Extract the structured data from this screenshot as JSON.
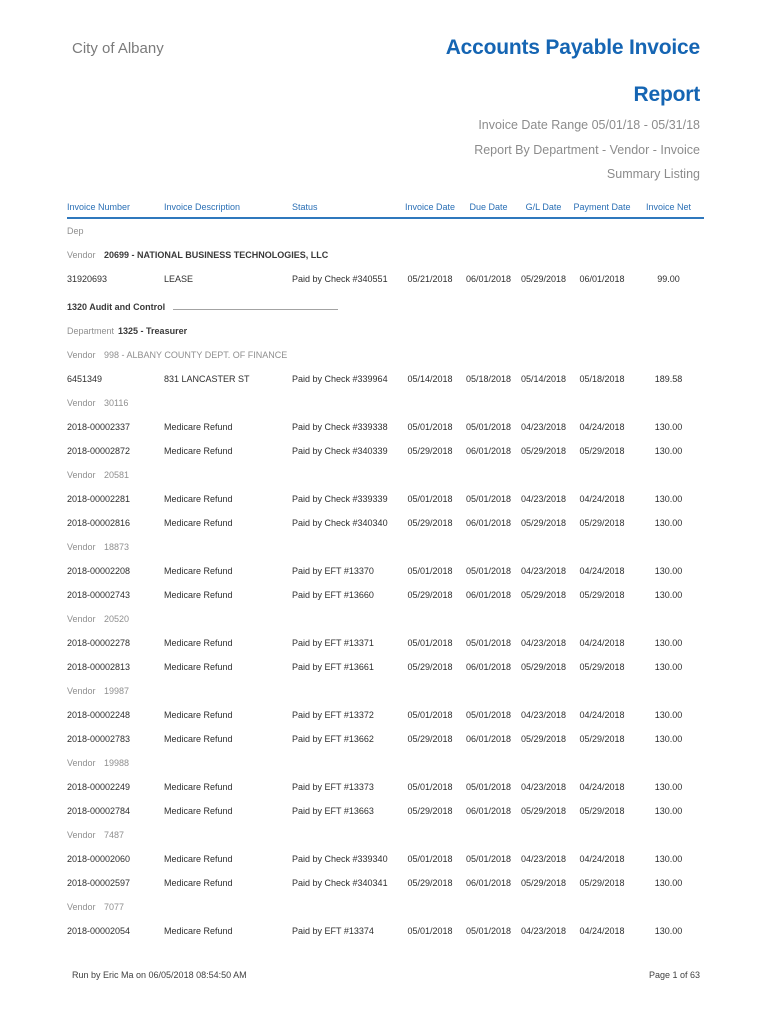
{
  "colors": {
    "title_blue": "#1565b3",
    "header_blue": "#2a6fb5",
    "rule_blue": "#2f78bd",
    "gray_text": "#8f8f8f",
    "dark_text": "#2f2f2f"
  },
  "header": {
    "org_name": "City of Albany",
    "title_line1": "Accounts Payable Invoice",
    "title_line2": "Report",
    "date_range": "Invoice Date Range 05/01/18 - 05/31/18",
    "report_by": "Report By Department - Vendor - Invoice",
    "summary": "Summary Listing"
  },
  "labels": {
    "vendor": "Vendor",
    "department": "Department"
  },
  "table": {
    "columns": [
      "Invoice Number",
      "Invoice Description",
      "Status",
      "Invoice Date",
      "Due Date",
      "G/L Date",
      "Payment Date",
      "Invoice Net"
    ],
    "rows": [
      {
        "t": "text",
        "text": "Dep"
      },
      {
        "t": "vendor",
        "value": "20699 - NATIONAL BUSINESS TECHNOLOGIES, LLC",
        "bold": true
      },
      {
        "t": "invoice",
        "cells": [
          "31920693",
          "LEASE",
          "Paid by Check #340551",
          "05/21/2018",
          "06/01/2018",
          "05/29/2018",
          "06/01/2018",
          "99.00"
        ]
      },
      {
        "t": "section",
        "text": "1320 Audit and Control"
      },
      {
        "t": "department",
        "value": "1325 - Treasurer"
      },
      {
        "t": "vendor",
        "value": "998 - ALBANY COUNTY DEPT. OF FINANCE",
        "bold": false
      },
      {
        "t": "invoice",
        "cells": [
          "6451349",
          "831 LANCASTER ST",
          "Paid by Check #339964",
          "05/14/2018",
          "05/18/2018",
          "05/14/2018",
          "05/18/2018",
          "189.58"
        ]
      },
      {
        "t": "vendor",
        "value": "30116",
        "bold": false
      },
      {
        "t": "invoice",
        "cells": [
          "2018-00002337",
          "Medicare Refund",
          "Paid by Check #339338",
          "05/01/2018",
          "05/01/2018",
          "04/23/2018",
          "04/24/2018",
          "130.00"
        ]
      },
      {
        "t": "invoice",
        "cells": [
          "2018-00002872",
          "Medicare Refund",
          "Paid by Check #340339",
          "05/29/2018",
          "06/01/2018",
          "05/29/2018",
          "05/29/2018",
          "130.00"
        ]
      },
      {
        "t": "vendor",
        "value": "20581",
        "bold": false
      },
      {
        "t": "invoice",
        "cells": [
          "2018-00002281",
          "Medicare Refund",
          "Paid by Check #339339",
          "05/01/2018",
          "05/01/2018",
          "04/23/2018",
          "04/24/2018",
          "130.00"
        ]
      },
      {
        "t": "invoice",
        "cells": [
          "2018-00002816",
          "Medicare Refund",
          "Paid by Check #340340",
          "05/29/2018",
          "06/01/2018",
          "05/29/2018",
          "05/29/2018",
          "130.00"
        ]
      },
      {
        "t": "vendor",
        "value": "18873",
        "bold": false
      },
      {
        "t": "invoice",
        "cells": [
          "2018-00002208",
          "Medicare Refund",
          "Paid by EFT #13370",
          "05/01/2018",
          "05/01/2018",
          "04/23/2018",
          "04/24/2018",
          "130.00"
        ]
      },
      {
        "t": "invoice",
        "cells": [
          "2018-00002743",
          "Medicare Refund",
          "Paid by EFT #13660",
          "05/29/2018",
          "06/01/2018",
          "05/29/2018",
          "05/29/2018",
          "130.00"
        ]
      },
      {
        "t": "vendor",
        "value": "20520",
        "bold": false
      },
      {
        "t": "invoice",
        "cells": [
          "2018-00002278",
          "Medicare Refund",
          "Paid by EFT #13371",
          "05/01/2018",
          "05/01/2018",
          "04/23/2018",
          "04/24/2018",
          "130.00"
        ]
      },
      {
        "t": "invoice",
        "cells": [
          "2018-00002813",
          "Medicare Refund",
          "Paid by EFT #13661",
          "05/29/2018",
          "06/01/2018",
          "05/29/2018",
          "05/29/2018",
          "130.00"
        ]
      },
      {
        "t": "vendor",
        "value": "19987",
        "bold": false
      },
      {
        "t": "invoice",
        "cells": [
          "2018-00002248",
          "Medicare Refund",
          "Paid by EFT #13372",
          "05/01/2018",
          "05/01/2018",
          "04/23/2018",
          "04/24/2018",
          "130.00"
        ]
      },
      {
        "t": "invoice",
        "cells": [
          "2018-00002783",
          "Medicare Refund",
          "Paid by EFT #13662",
          "05/29/2018",
          "06/01/2018",
          "05/29/2018",
          "05/29/2018",
          "130.00"
        ]
      },
      {
        "t": "vendor",
        "value": "19988",
        "bold": false
      },
      {
        "t": "invoice",
        "cells": [
          "2018-00002249",
          "Medicare Refund",
          "Paid by EFT #13373",
          "05/01/2018",
          "05/01/2018",
          "04/23/2018",
          "04/24/2018",
          "130.00"
        ]
      },
      {
        "t": "invoice",
        "cells": [
          "2018-00002784",
          "Medicare Refund",
          "Paid by EFT #13663",
          "05/29/2018",
          "06/01/2018",
          "05/29/2018",
          "05/29/2018",
          "130.00"
        ]
      },
      {
        "t": "vendor",
        "value": "7487",
        "bold": false
      },
      {
        "t": "invoice",
        "cells": [
          "2018-00002060",
          "Medicare Refund",
          "Paid by Check #339340",
          "05/01/2018",
          "05/01/2018",
          "04/23/2018",
          "04/24/2018",
          "130.00"
        ]
      },
      {
        "t": "invoice",
        "cells": [
          "2018-00002597",
          "Medicare Refund",
          "Paid by Check #340341",
          "05/29/2018",
          "06/01/2018",
          "05/29/2018",
          "05/29/2018",
          "130.00"
        ]
      },
      {
        "t": "vendor",
        "value": "7077",
        "bold": false
      },
      {
        "t": "invoice",
        "cells": [
          "2018-00002054",
          "Medicare Refund",
          "Paid by EFT #13374",
          "05/01/2018",
          "05/01/2018",
          "04/23/2018",
          "04/24/2018",
          "130.00"
        ]
      }
    ]
  },
  "footer": {
    "run_by": "Run by Eric Ma on 06/05/2018 08:54:50 AM",
    "page": "Page 1 of 63"
  }
}
